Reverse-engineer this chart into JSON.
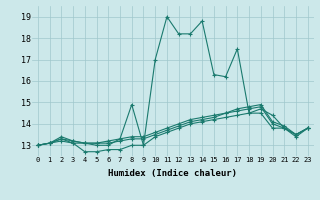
{
  "title": "",
  "xlabel": "Humidex (Indice chaleur)",
  "ylabel": "",
  "xlim": [
    -0.5,
    23.5
  ],
  "ylim": [
    12.5,
    19.5
  ],
  "yticks": [
    13,
    14,
    15,
    16,
    17,
    18,
    19
  ],
  "xticks": [
    0,
    1,
    2,
    3,
    4,
    5,
    6,
    7,
    8,
    9,
    10,
    11,
    12,
    13,
    14,
    15,
    16,
    17,
    18,
    19,
    20,
    21,
    22,
    23
  ],
  "bg_color": "#cce8ea",
  "grid_color": "#a0c8cc",
  "line_color": "#1a7a6e",
  "lines": [
    [
      13.0,
      13.1,
      13.2,
      13.1,
      12.7,
      12.7,
      12.8,
      12.8,
      13.0,
      13.0,
      17.0,
      19.0,
      18.2,
      18.2,
      18.8,
      16.3,
      16.2,
      17.5,
      14.5,
      14.7,
      14.4,
      13.8,
      13.4,
      13.8
    ],
    [
      13.0,
      13.1,
      13.3,
      13.1,
      13.1,
      13.0,
      13.0,
      13.3,
      14.9,
      13.0,
      13.4,
      13.6,
      13.8,
      14.0,
      14.1,
      14.2,
      14.3,
      14.4,
      14.5,
      14.5,
      13.8,
      13.8,
      13.5,
      13.8
    ],
    [
      13.0,
      13.1,
      13.3,
      13.2,
      13.1,
      13.1,
      13.1,
      13.2,
      13.3,
      13.3,
      13.5,
      13.7,
      13.9,
      14.1,
      14.2,
      14.3,
      14.5,
      14.6,
      14.7,
      14.8,
      14.0,
      13.8,
      13.5,
      13.8
    ],
    [
      13.0,
      13.1,
      13.4,
      13.2,
      13.1,
      13.1,
      13.2,
      13.3,
      13.4,
      13.4,
      13.6,
      13.8,
      14.0,
      14.2,
      14.3,
      14.4,
      14.5,
      14.7,
      14.8,
      14.9,
      14.1,
      13.9,
      13.5,
      13.8
    ]
  ]
}
